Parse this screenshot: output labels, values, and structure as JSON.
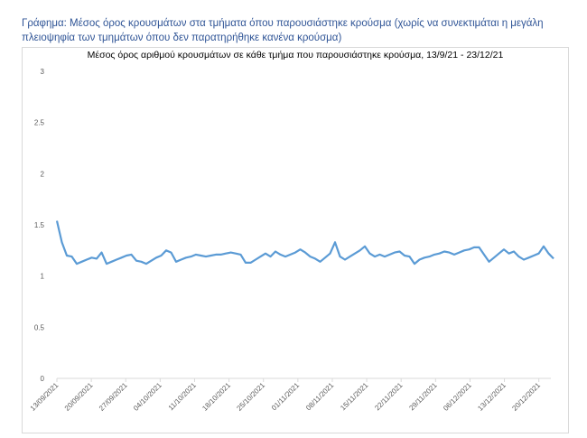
{
  "caption": "Γράφημα: Μέσος όρος κρουσμάτων στα τμήματα όπου παρουσιάστηκε κρούσμα (χωρίς να συνεκτιμάται η μεγάλη πλειοψηφία των τμημάτων όπου δεν παρατηρήθηκε κανένα κρούσμα)",
  "chart_data": {
    "type": "line",
    "title": "Μέσος όρος αριθμού κρουσμάτων σε κάθε τμήμα που παρουσιάστηκε κρούσμα, 13/9/21 - 23/12/21",
    "xlabel": "",
    "ylabel": "",
    "ylim": [
      0,
      3
    ],
    "yticks": [
      "0",
      "0.5",
      "1",
      "1.5",
      "2",
      "2.5",
      "3"
    ],
    "xticks": [
      "13/09/2021",
      "20/09/2021",
      "27/09/2021",
      "04/10/2021",
      "11/10/2021",
      "18/10/2021",
      "25/10/2021",
      "01/11/2021",
      "08/11/2021",
      "15/11/2021",
      "22/11/2021",
      "29/11/2021",
      "06/12/2021",
      "13/12/2021",
      "20/12/2021"
    ],
    "x_start": "13/09/2021",
    "x_end": "23/12/2021",
    "grid": false,
    "legend": "none",
    "line_color": "#5b9bd5",
    "series": [
      {
        "name": "",
        "values": [
          1.54,
          1.33,
          1.2,
          1.19,
          1.12,
          1.14,
          1.16,
          1.18,
          1.17,
          1.23,
          1.12,
          1.14,
          1.16,
          1.18,
          1.2,
          1.21,
          1.15,
          1.14,
          1.12,
          1.15,
          1.18,
          1.2,
          1.25,
          1.23,
          1.14,
          1.16,
          1.18,
          1.19,
          1.21,
          1.2,
          1.19,
          1.2,
          1.21,
          1.21,
          1.22,
          1.23,
          1.22,
          1.21,
          1.13,
          1.13,
          1.16,
          1.19,
          1.22,
          1.19,
          1.24,
          1.21,
          1.19,
          1.21,
          1.23,
          1.26,
          1.23,
          1.19,
          1.17,
          1.14,
          1.18,
          1.22,
          1.33,
          1.19,
          1.16,
          1.19,
          1.22,
          1.25,
          1.29,
          1.22,
          1.19,
          1.21,
          1.19,
          1.21,
          1.23,
          1.24,
          1.2,
          1.19,
          1.12,
          1.16,
          1.18,
          1.19,
          1.21,
          1.22,
          1.24,
          1.23,
          1.21,
          1.23,
          1.25,
          1.26,
          1.28,
          1.28,
          1.21,
          1.14,
          1.18,
          1.22,
          1.26,
          1.22,
          1.24,
          1.19,
          1.16,
          1.18,
          1.2,
          1.22,
          1.29,
          1.22,
          1.17
        ]
      }
    ]
  }
}
